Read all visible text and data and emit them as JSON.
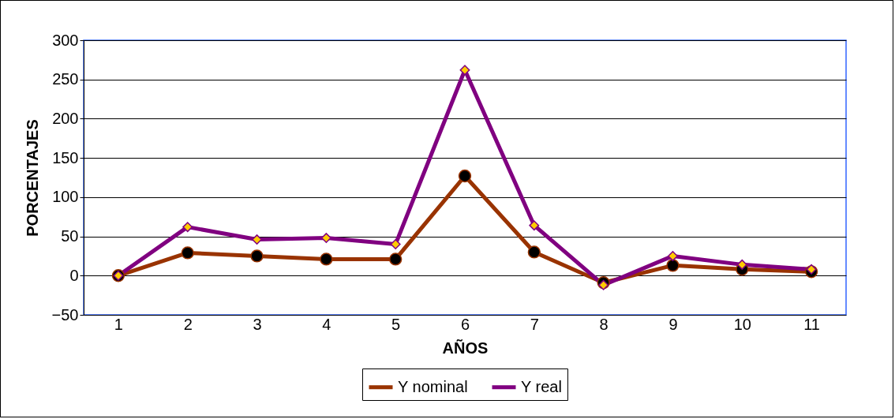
{
  "chart_data": {
    "type": "line",
    "xlabel": "AÑOS",
    "ylabel": "PORCENTAJES",
    "categories": [
      "1",
      "2",
      "3",
      "4",
      "5",
      "6",
      "7",
      "8",
      "9",
      "10",
      "11"
    ],
    "series": [
      {
        "name": "Y nominal",
        "color": "#993300",
        "marker": "circle",
        "values": [
          0,
          29,
          25,
          21,
          21,
          127,
          30,
          -9,
          13,
          8,
          5
        ]
      },
      {
        "name": "Y real",
        "color": "#800080",
        "marker": "diamond",
        "values": [
          0,
          62,
          46,
          48,
          40,
          262,
          64,
          -12,
          25,
          14,
          8
        ]
      }
    ],
    "ylim": [
      -50,
      300
    ],
    "yticks": [
      -50,
      0,
      50,
      100,
      150,
      200,
      250,
      300
    ],
    "grid": "y",
    "legend": "bottom"
  }
}
